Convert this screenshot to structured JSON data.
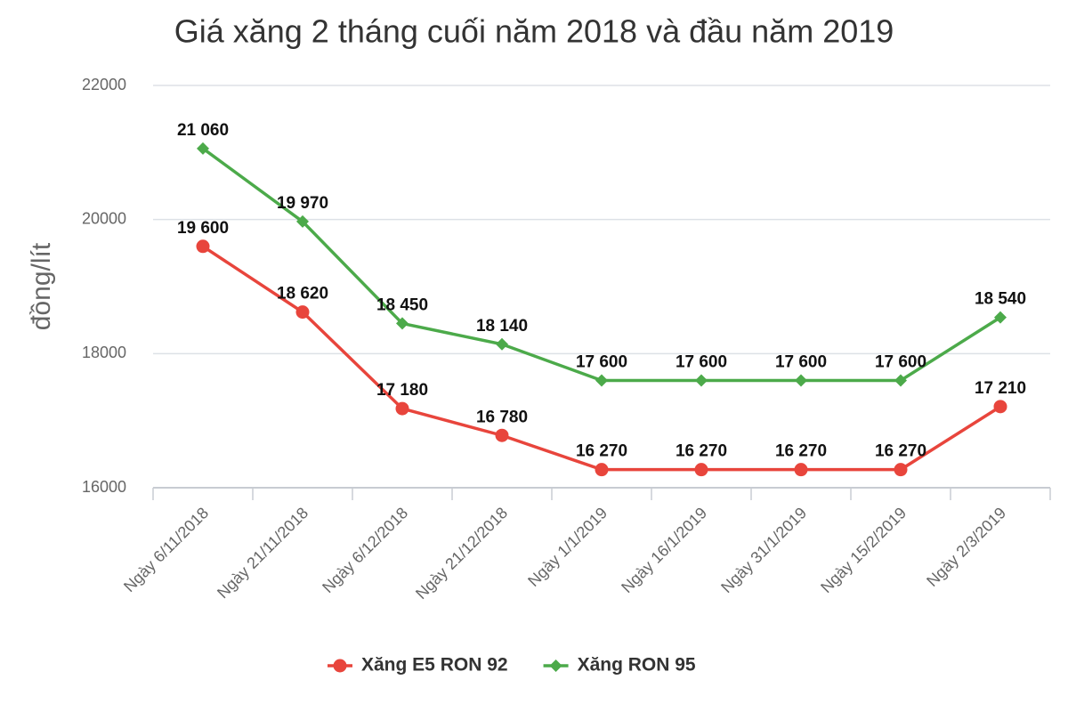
{
  "chart_data": {
    "type": "line",
    "title": "Giá xăng 2 tháng cuối năm 2018 và đầu năm 2019",
    "y_label": "đồng/lít",
    "categories": [
      "Ngày 6/11/2018",
      "Ngày 21/11/2018",
      "Ngày 6/12/2018",
      "Ngày 21/12/2018",
      "Ngày 1/1/2019",
      "Ngày 16/1/2019",
      "Ngày 31/1/2019",
      "Ngày 15/2/2019",
      "Ngày 2/3/2019"
    ],
    "series": [
      {
        "name": "Xăng E5 RON 92",
        "color": "#e8453c",
        "marker": "circle",
        "values": [
          19600,
          18620,
          17180,
          16780,
          16270,
          16270,
          16270,
          16270,
          17210
        ],
        "value_labels": [
          "19 600",
          "18 620",
          "17 180",
          "16 780",
          "16 270",
          "16 270",
          "16 270",
          "16 270",
          "17 210"
        ]
      },
      {
        "name": "Xăng RON 95",
        "color": "#4caa4a",
        "marker": "diamond",
        "values": [
          21060,
          19970,
          18450,
          18140,
          17600,
          17600,
          17600,
          17600,
          18540
        ],
        "value_labels": [
          "21 060",
          "19 970",
          "18 450",
          "18 140",
          "17 600",
          "17 600",
          "17 600",
          "17 600",
          "18 540"
        ]
      }
    ],
    "ylim": [
      16000,
      22000
    ],
    "yticks": [
      16000,
      18000,
      20000,
      22000
    ],
    "grid": true
  }
}
